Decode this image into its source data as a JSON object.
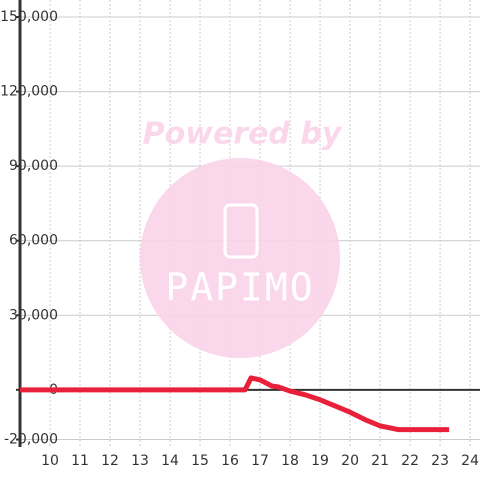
{
  "chart_data": {
    "type": "line",
    "x": [
      9,
      16.5,
      16.7,
      17,
      17.4,
      17.6,
      18,
      18.5,
      19,
      19.5,
      20,
      20.5,
      21,
      21.6,
      23.3
    ],
    "series": [
      {
        "color": "#e8203a",
        "values": [
          0,
          0,
          4800,
          4000,
          1500,
          1200,
          -500,
          -2000,
          -4000,
          -6500,
          -9000,
          -12000,
          -14500,
          -16000,
          -16000
        ]
      }
    ],
    "xlim": [
      9,
      24.33
    ],
    "ylim": [
      -23000,
      150000
    ],
    "xticks": [
      10,
      11,
      12,
      13,
      14,
      15,
      16,
      17,
      18,
      19,
      20,
      21,
      22,
      23,
      24
    ],
    "yticks": [
      {
        "value": -20000,
        "label": "-20,000"
      },
      0,
      {
        "value": 30000,
        "label": "30,000"
      },
      {
        "value": 60000,
        "label": "60,000"
      },
      {
        "value": 90000,
        "label": "90,000"
      },
      {
        "value": 120000,
        "label": "120,000"
      },
      {
        "value": 150000,
        "label": "150,000"
      }
    ],
    "grid": true,
    "watermark": {
      "line1": "Powered by",
      "line2": "PAPIMO"
    }
  }
}
